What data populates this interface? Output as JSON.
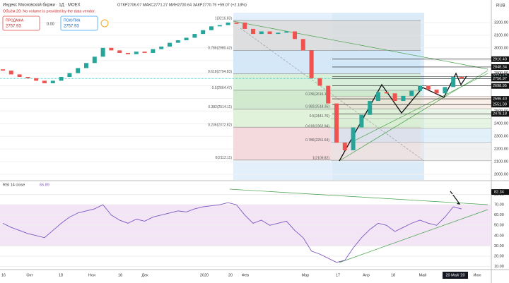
{
  "header": {
    "symbol": "Индекс Московской биржи · 1Д · MOEX",
    "ohlc": "ОТКР2706.07 МАКС2771.27 МИН2700.64 ЗАКР2770.79 +59.07 (+2.18%)",
    "volume_note": "Объём 20: No volume is provided by the data vendor.",
    "sell_label": "ПРОДАЖА",
    "sell_price": "2757.93",
    "spread": "0.00",
    "buy_label": "ПОКУПКА",
    "buy_price": "2757.93",
    "currency": "RUB"
  },
  "chart_data": {
    "type": "candlestick",
    "open": [
      2830,
      2820,
      2790,
      2770,
      2760,
      2740,
      2720,
      2740,
      2770,
      2800,
      2840,
      2880,
      2930,
      3000,
      2980,
      2960,
      2950,
      2970,
      2960,
      2990,
      3010,
      3040,
      3060,
      3080,
      3110,
      3140,
      3170,
      3180,
      3200,
      3200,
      3150,
      3110,
      3130,
      3110,
      3120,
      3130,
      3070,
      2980,
      2760,
      2700,
      2560,
      2250,
      2190,
      2370,
      2470,
      2580,
      2650,
      2640,
      2580,
      2620,
      2660,
      2700,
      2670,
      2640,
      2690,
      2770
    ],
    "close": [
      2820,
      2790,
      2770,
      2760,
      2740,
      2720,
      2740,
      2770,
      2800,
      2840,
      2880,
      2930,
      3000,
      2980,
      2960,
      2950,
      2970,
      2960,
      2990,
      3010,
      3040,
      3060,
      3080,
      3110,
      3140,
      3170,
      3180,
      3200,
      3190,
      3150,
      3110,
      3130,
      3110,
      3120,
      3130,
      3070,
      2980,
      2760,
      2700,
      2560,
      2250,
      2190,
      2370,
      2470,
      2580,
      2650,
      2640,
      2580,
      2620,
      2660,
      2700,
      2670,
      2640,
      2690,
      2770,
      2758
    ],
    "up_color": "#26a69a",
    "down_color": "#ef5350",
    "ylim": [
      1955,
      3278
    ],
    "yticks": [
      {
        "value": 3200,
        "label": "3200.00"
      },
      {
        "value": 3100,
        "label": "3100.00"
      },
      {
        "value": 3000,
        "label": "3000.00"
      },
      {
        "value": 2900,
        "label": "2900.00"
      },
      {
        "value": 2800,
        "label": "2800.00"
      },
      {
        "value": 2700,
        "label": "2700.00"
      },
      {
        "value": 2600,
        "label": "2600.00"
      },
      {
        "value": 2500,
        "label": "2500.00"
      },
      {
        "value": 2400,
        "label": "2400.00"
      },
      {
        "value": 2300,
        "label": "2300.00"
      },
      {
        "value": 2200,
        "label": "2200.00"
      },
      {
        "value": 2100,
        "label": "2100.00"
      },
      {
        "value": 2000,
        "label": "2000.00"
      }
    ],
    "price_tags": [
      {
        "value": 2910.4,
        "label": "2910.40"
      },
      {
        "value": 2848.34,
        "label": "2848.34"
      },
      {
        "value": 2774.17,
        "label": "2774.17"
      },
      {
        "value": 2757.93,
        "label": "2757.93"
      },
      {
        "value": 2756.97,
        "label": "2756.97"
      },
      {
        "value": 2698.95,
        "label": "2698.95"
      },
      {
        "value": 2596.4,
        "label": "2596.40"
      },
      {
        "value": 2551.09,
        "label": "2551.09"
      },
      {
        "value": 2478.18,
        "label": "2478.18"
      }
    ],
    "fib_left": [
      {
        "value": 3216.83,
        "label": "1(3216.83)"
      },
      {
        "value": 2980.42,
        "label": "0.786(2980.42)"
      },
      {
        "value": 2794.83,
        "label": "0.618(2794.83)"
      },
      {
        "value": 2664.47,
        "label": "0.5(2664.47)"
      },
      {
        "value": 2514.11,
        "label": "0.382(2514.11)"
      },
      {
        "value": 2372.82,
        "label": "0.236(2372.82)"
      },
      {
        "value": 2112.11,
        "label": "0(2112.11)"
      }
    ],
    "fib_right": [
      {
        "value": 2616.1,
        "label": "0.236(2616.10)"
      },
      {
        "value": 2518.35,
        "label": "0.382(2518.35)"
      },
      {
        "value": 2441.76,
        "label": "0.5(2441.76)"
      },
      {
        "value": 2362.94,
        "label": "0.618(2362.94)"
      },
      {
        "value": 2251.64,
        "label": "0.786(2251.64)"
      },
      {
        "value": 2109.82,
        "label": "1(2109.82)"
      }
    ],
    "time_labels": [
      "16",
      "Окт",
      "18",
      "Ноя",
      "18",
      "Дек",
      "2020",
      "20",
      "Фев",
      "Мар",
      "17",
      "Апр",
      "18",
      "Май",
      "20 Май '20",
      "Июн"
    ],
    "rsi": {
      "label": "RSI 14 close",
      "last": "65.89",
      "color": "#7e57c2",
      "values": [
        52,
        48,
        45,
        42,
        40,
        38,
        45,
        52,
        58,
        62,
        64,
        66,
        70,
        60,
        55,
        52,
        56,
        54,
        58,
        60,
        62,
        64,
        63,
        66,
        68,
        69,
        70,
        72,
        70,
        60,
        52,
        55,
        50,
        52,
        54,
        45,
        38,
        25,
        22,
        18,
        14,
        16,
        28,
        38,
        46,
        52,
        50,
        44,
        48,
        52,
        55,
        52,
        50,
        58,
        68,
        65.89
      ],
      "ylim": [
        7,
        92
      ],
      "band": [
        30,
        70
      ],
      "yticks": [
        {
          "value": 80,
          "label": "80.00"
        },
        {
          "value": 70,
          "label": "70.00"
        },
        {
          "value": 60,
          "label": "60.00"
        },
        {
          "value": 50,
          "label": "50.00"
        },
        {
          "value": 40,
          "label": "40.00"
        },
        {
          "value": 30,
          "label": "30.00"
        },
        {
          "value": 20,
          "label": "20.00"
        },
        {
          "value": 10,
          "label": "10.00"
        }
      ],
      "tag": {
        "value": 82.34,
        "label": "82.34"
      }
    }
  }
}
